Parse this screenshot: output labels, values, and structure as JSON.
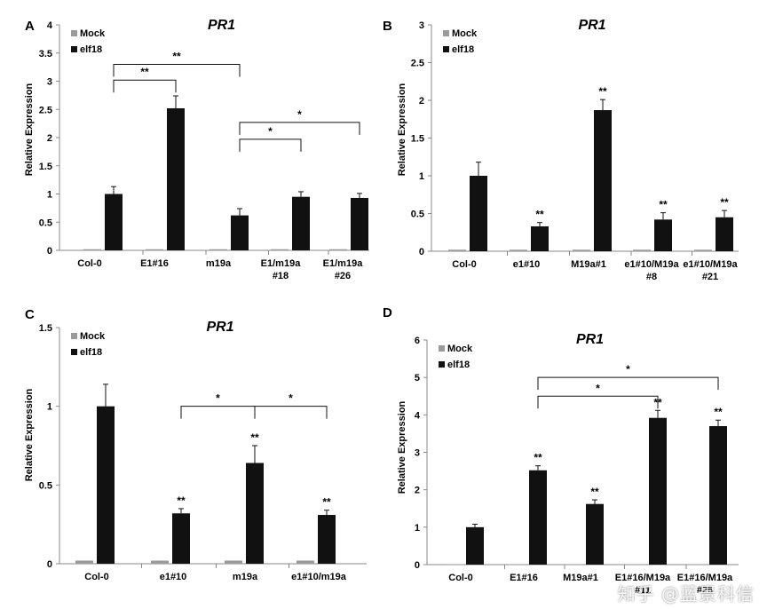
{
  "figure": {
    "watermark": "知乎 @蓝景科信"
  },
  "chart_data": [
    {
      "panel": "A",
      "type": "bar",
      "title": "PR1",
      "ylabel": "Relative Expression",
      "xlabel": "",
      "ylim": [
        0,
        4
      ],
      "yticks": [
        "0",
        "0.5",
        "1",
        "1.5",
        "2",
        "2.5",
        "3",
        "3.5",
        "4"
      ],
      "categories": [
        "Col-0",
        "E1#16",
        "m19a",
        "E1/m19a #18",
        "E1/m19a #26"
      ],
      "series": [
        {
          "name": "Mock",
          "color": "#9a9a9a",
          "values": [
            0.02,
            0.02,
            0.02,
            0.02,
            0.02
          ],
          "errors": [
            0,
            0,
            0,
            0,
            0
          ]
        },
        {
          "name": "elf18",
          "color": "#111111",
          "values": [
            1.0,
            2.52,
            0.62,
            0.95,
            0.93
          ],
          "errors": [
            0.13,
            0.22,
            0.12,
            0.09,
            0.08
          ]
        }
      ],
      "bar_marks": [
        "",
        "",
        "",
        "",
        ""
      ],
      "brackets": [
        {
          "from": 0,
          "to": 1,
          "y": 3.02,
          "label": "**"
        },
        {
          "from": 0,
          "to": 2,
          "y": 3.3,
          "label": "**"
        },
        {
          "from": 2,
          "to": 3,
          "y": 1.97,
          "label": "*"
        },
        {
          "from": 2,
          "to": 4,
          "y": 2.27,
          "label": "*"
        }
      ],
      "legend": "top-left"
    },
    {
      "panel": "B",
      "type": "bar",
      "title": "PR1",
      "ylabel": "Relative Expression",
      "xlabel": "",
      "ylim": [
        0,
        3
      ],
      "yticks": [
        "0",
        "0.5",
        "1",
        "1.5",
        "2",
        "2.5",
        "3"
      ],
      "categories": [
        "Col-0",
        "e1#10",
        "M19a#1",
        "e1#10/M19a #8",
        "e1#10/M19a #21"
      ],
      "series": [
        {
          "name": "Mock",
          "color": "#9a9a9a",
          "values": [
            0.02,
            0.02,
            0.02,
            0.02,
            0.02
          ],
          "errors": [
            0,
            0,
            0,
            0,
            0
          ]
        },
        {
          "name": "elf18",
          "color": "#111111",
          "values": [
            1.0,
            0.33,
            1.87,
            0.42,
            0.45
          ],
          "errors": [
            0.18,
            0.05,
            0.14,
            0.09,
            0.09
          ]
        }
      ],
      "bar_marks": [
        "",
        "**",
        "**",
        "**",
        "**"
      ],
      "brackets": [],
      "legend": "top-left"
    },
    {
      "panel": "C",
      "type": "bar",
      "title": "PR1",
      "ylabel": "Relative Expression",
      "xlabel": "",
      "ylim": [
        0,
        1.5
      ],
      "yticks": [
        "0",
        "0.5",
        "1",
        "1.5"
      ],
      "categories": [
        "Col-0",
        "e1#10",
        "m19a",
        "e1#10/m19a"
      ],
      "series": [
        {
          "name": "Mock",
          "color": "#9a9a9a",
          "values": [
            0.02,
            0.02,
            0.02,
            0.02
          ],
          "errors": [
            0,
            0,
            0,
            0
          ]
        },
        {
          "name": "elf18",
          "color": "#111111",
          "values": [
            1.0,
            0.32,
            0.64,
            0.31
          ],
          "errors": [
            0.14,
            0.03,
            0.11,
            0.03
          ]
        }
      ],
      "bar_marks": [
        "",
        "**",
        "**",
        "**"
      ],
      "brackets": [
        {
          "from": 1,
          "to": 2,
          "y": 1.0,
          "label": "*"
        },
        {
          "from": 2,
          "to": 3,
          "y": 1.0,
          "label": "*"
        }
      ],
      "legend": "top-left"
    },
    {
      "panel": "D",
      "type": "bar",
      "title": "PR1",
      "ylabel": "Relative Expression",
      "xlabel": "",
      "ylim": [
        0,
        6
      ],
      "yticks": [
        "0",
        "1",
        "2",
        "3",
        "4",
        "5",
        "6"
      ],
      "categories": [
        "Col-0",
        "E1#16",
        "M19a#1",
        "E1#16/M19a #11",
        "E1#16/M19a #25"
      ],
      "series": [
        {
          "name": "Mock",
          "color": "#9a9a9a",
          "values": [
            0.01,
            0.01,
            0.01,
            0.01,
            0.01
          ],
          "errors": [
            0,
            0,
            0,
            0,
            0
          ]
        },
        {
          "name": "elf18",
          "color": "#111111",
          "values": [
            1.0,
            2.52,
            1.62,
            3.92,
            3.7
          ],
          "errors": [
            0.08,
            0.12,
            0.11,
            0.2,
            0.16
          ]
        }
      ],
      "bar_marks": [
        "",
        "**",
        "**",
        "**",
        "**"
      ],
      "brackets": [
        {
          "from": 1,
          "to": 4,
          "y": 5.0,
          "label": "*"
        },
        {
          "from": 1,
          "to": 3,
          "y": 4.5,
          "label": "*"
        }
      ],
      "legend": "top-left"
    }
  ]
}
